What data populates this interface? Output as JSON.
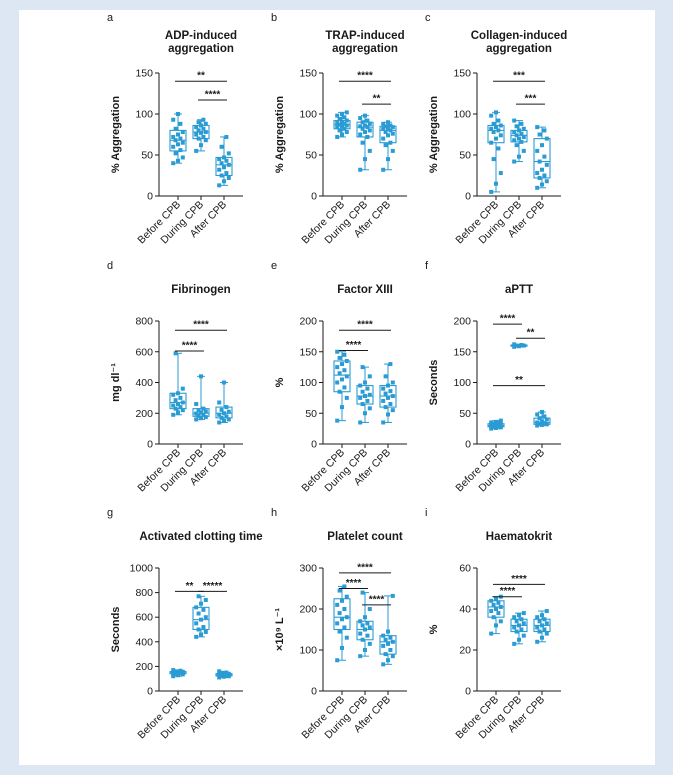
{
  "colors": {
    "series": "#2b9bd3",
    "axis": "#1a1a1a",
    "panel_bg": "#ffffff",
    "page_bg": "#dce7f3"
  },
  "chart_data": [
    {
      "id": "a",
      "type": "boxplot",
      "letter": "a",
      "title": [
        "ADP-induced",
        "aggregation"
      ],
      "ylabel": "% Aggregation",
      "ylim": [
        0,
        150
      ],
      "yticks": [
        0,
        50,
        100,
        150
      ],
      "categories": [
        "Before CPB",
        "During CPB",
        "After CPB"
      ],
      "boxes": [
        {
          "min": 40,
          "q1": 55,
          "median": 68,
          "q3": 80,
          "max": 100
        },
        {
          "min": 55,
          "q1": 70,
          "median": 78,
          "q3": 86,
          "max": 93
        },
        {
          "min": 13,
          "q1": 25,
          "median": 38,
          "q3": 47,
          "max": 72
        }
      ],
      "points": [
        [
          40,
          43,
          47,
          52,
          56,
          60,
          63,
          65,
          68,
          70,
          72,
          75,
          78,
          82,
          88,
          93,
          100
        ],
        [
          55,
          62,
          68,
          70,
          72,
          75,
          77,
          78,
          80,
          82,
          84,
          86,
          88,
          90,
          93
        ],
        [
          13,
          18,
          22,
          25,
          28,
          32,
          35,
          38,
          40,
          43,
          45,
          47,
          52,
          60,
          72
        ]
      ],
      "significance": [
        {
          "from": 0,
          "to": 2,
          "label": "**",
          "y": 140
        },
        {
          "from": 1,
          "to": 2,
          "label": "****",
          "y": 117
        }
      ]
    },
    {
      "id": "b",
      "type": "boxplot",
      "letter": "b",
      "title": [
        "TRAP-induced",
        "aggregation"
      ],
      "ylabel": "% Aggregation",
      "ylim": [
        0,
        150
      ],
      "yticks": [
        0,
        50,
        100,
        150
      ],
      "categories": [
        "Before CPB",
        "During CPB",
        "After CPB"
      ],
      "boxes": [
        {
          "min": 72,
          "q1": 82,
          "median": 87,
          "q3": 92,
          "max": 102
        },
        {
          "min": 32,
          "q1": 72,
          "median": 84,
          "q3": 90,
          "max": 98
        },
        {
          "min": 32,
          "q1": 65,
          "median": 80,
          "q3": 85,
          "max": 90
        }
      ],
      "points": [
        [
          72,
          75,
          78,
          80,
          82,
          84,
          85,
          86,
          87,
          88,
          89,
          90,
          92,
          94,
          96,
          98,
          100,
          102
        ],
        [
          32,
          45,
          55,
          65,
          72,
          75,
          78,
          80,
          82,
          84,
          85,
          86,
          88,
          90,
          92,
          95,
          98
        ],
        [
          32,
          45,
          55,
          62,
          65,
          70,
          74,
          76,
          78,
          80,
          82,
          83,
          84,
          85,
          86,
          88,
          90
        ]
      ],
      "significance": [
        {
          "from": 0,
          "to": 2,
          "label": "****",
          "y": 140
        },
        {
          "from": 1,
          "to": 2,
          "label": "**",
          "y": 112
        }
      ]
    },
    {
      "id": "c",
      "type": "boxplot",
      "letter": "c",
      "title": [
        "Collagen-induced",
        "aggregation"
      ],
      "ylabel": "% Aggregation",
      "ylim": [
        0,
        150
      ],
      "yticks": [
        0,
        50,
        100,
        150
      ],
      "categories": [
        "Before CPB",
        "During CPB",
        "After CPB"
      ],
      "boxes": [
        {
          "min": 5,
          "q1": 65,
          "median": 80,
          "q3": 86,
          "max": 102
        },
        {
          "min": 42,
          "q1": 66,
          "median": 74,
          "q3": 80,
          "max": 92
        },
        {
          "min": 10,
          "q1": 22,
          "median": 42,
          "q3": 70,
          "max": 84
        }
      ],
      "points": [
        [
          5,
          15,
          28,
          45,
          58,
          65,
          70,
          74,
          78,
          80,
          82,
          84,
          86,
          88,
          92,
          98,
          102
        ],
        [
          42,
          48,
          55,
          62,
          66,
          68,
          70,
          72,
          74,
          76,
          78,
          80,
          82,
          85,
          88,
          92
        ],
        [
          10,
          14,
          18,
          22,
          25,
          28,
          32,
          38,
          42,
          48,
          55,
          62,
          70,
          75,
          80,
          84
        ]
      ],
      "significance": [
        {
          "from": 0,
          "to": 2,
          "label": "***",
          "y": 140
        },
        {
          "from": 1,
          "to": 2,
          "label": "***",
          "y": 112
        }
      ]
    },
    {
      "id": "d",
      "type": "boxplot",
      "letter": "d",
      "title": [
        "Fibrinogen"
      ],
      "ylabel": "mg dl⁻¹",
      "ylim": [
        0,
        800
      ],
      "yticks": [
        0,
        200,
        400,
        600,
        800
      ],
      "categories": [
        "Before CPB",
        "During CPB",
        "After CPB"
      ],
      "boxes": [
        {
          "min": 190,
          "q1": 230,
          "median": 270,
          "q3": 330,
          "max": 590
        },
        {
          "min": 160,
          "q1": 180,
          "median": 200,
          "q3": 230,
          "max": 440
        },
        {
          "min": 140,
          "q1": 170,
          "median": 200,
          "q3": 240,
          "max": 400
        }
      ],
      "points": [
        [
          190,
          205,
          220,
          230,
          240,
          250,
          260,
          270,
          285,
          300,
          320,
          330,
          360,
          590
        ],
        [
          160,
          168,
          175,
          182,
          190,
          198,
          205,
          212,
          220,
          230,
          260,
          440
        ],
        [
          140,
          150,
          160,
          170,
          180,
          190,
          200,
          210,
          222,
          240,
          270,
          400
        ]
      ],
      "significance": [
        {
          "from": 0,
          "to": 2,
          "label": "****",
          "y": 740
        },
        {
          "from": 0,
          "to": 1,
          "label": "****",
          "y": 605
        }
      ]
    },
    {
      "id": "e",
      "type": "boxplot",
      "letter": "e",
      "title": [
        "Factor XIII"
      ],
      "ylabel": "%",
      "ylim": [
        0,
        200
      ],
      "yticks": [
        0,
        50,
        100,
        150,
        200
      ],
      "categories": [
        "Before CPB",
        "During CPB",
        "After CPB"
      ],
      "boxes": [
        {
          "min": 38,
          "q1": 85,
          "median": 112,
          "q3": 135,
          "max": 150
        },
        {
          "min": 35,
          "q1": 65,
          "median": 78,
          "q3": 95,
          "max": 125
        },
        {
          "min": 35,
          "q1": 60,
          "median": 78,
          "q3": 95,
          "max": 130
        }
      ],
      "points": [
        [
          38,
          60,
          75,
          85,
          92,
          100,
          105,
          110,
          115,
          120,
          125,
          130,
          135,
          140,
          145,
          150
        ],
        [
          35,
          50,
          58,
          65,
          70,
          75,
          78,
          80,
          85,
          90,
          95,
          100,
          110,
          125
        ],
        [
          35,
          48,
          55,
          60,
          65,
          70,
          75,
          78,
          82,
          86,
          90,
          95,
          100,
          110,
          130
        ]
      ],
      "significance": [
        {
          "from": 0,
          "to": 2,
          "label": "****",
          "y": 185
        },
        {
          "from": 0,
          "to": 1,
          "label": "****",
          "y": 152
        }
      ]
    },
    {
      "id": "f",
      "type": "boxplot",
      "letter": "f",
      "title": [
        "aPTT"
      ],
      "ylabel": "Seconds",
      "ylim": [
        0,
        200
      ],
      "yticks": [
        0,
        50,
        100,
        150,
        200
      ],
      "categories": [
        "Before CPB",
        "During CPB",
        "After CPB"
      ],
      "boxes": [
        {
          "min": 25,
          "q1": 28,
          "median": 30,
          "q3": 33,
          "max": 38
        },
        {
          "min": 158,
          "q1": 159,
          "median": 160,
          "q3": 161,
          "max": 162
        },
        {
          "min": 30,
          "q1": 32,
          "median": 35,
          "q3": 42,
          "max": 52
        }
      ],
      "points": [
        [
          25,
          26,
          27,
          28,
          29,
          30,
          31,
          32,
          33,
          34,
          35,
          36,
          38
        ],
        [
          158,
          159,
          160,
          160,
          161,
          162
        ],
        [
          30,
          31,
          32,
          33,
          34,
          35,
          37,
          40,
          42,
          45,
          48,
          52
        ]
      ],
      "significance": [
        {
          "from": 0,
          "to": 1,
          "label": "****",
          "y": 195
        },
        {
          "from": 1,
          "to": 2,
          "label": "**",
          "y": 172
        },
        {
          "from": 0,
          "to": 2,
          "label": "**",
          "y": 95
        }
      ]
    },
    {
      "id": "g",
      "type": "boxplot",
      "letter": "g",
      "title": [
        "Activated clotting time"
      ],
      "ylabel": "Seconds",
      "ylim": [
        0,
        1000
      ],
      "yticks": [
        0,
        200,
        400,
        600,
        800,
        1000
      ],
      "categories": [
        "Before CPB",
        "During CPB",
        "After CPB"
      ],
      "boxes": [
        {
          "min": 120,
          "q1": 140,
          "median": 148,
          "q3": 158,
          "max": 170
        },
        {
          "min": 440,
          "q1": 500,
          "median": 580,
          "q3": 680,
          "max": 770
        },
        {
          "min": 110,
          "q1": 122,
          "median": 132,
          "q3": 142,
          "max": 160
        }
      ],
      "points": [
        [
          120,
          128,
          135,
          140,
          144,
          148,
          152,
          156,
          160,
          165,
          170
        ],
        [
          440,
          460,
          480,
          500,
          520,
          550,
          580,
          600,
          630,
          660,
          680,
          710,
          740,
          770
        ],
        [
          110,
          116,
          120,
          124,
          128,
          132,
          136,
          140,
          145,
          150,
          160
        ]
      ],
      "significance": [
        {
          "from": 0,
          "to": 1,
          "label": "**",
          "y": 810
        },
        {
          "from": 1,
          "to": 2,
          "label": "*****",
          "y": 810
        }
      ]
    },
    {
      "id": "h",
      "type": "boxplot",
      "letter": "h",
      "title": [
        "Platelet count"
      ],
      "ylabel": "×10⁹ L⁻¹",
      "ylim": [
        0,
        300
      ],
      "yticks": [
        0,
        100,
        200,
        300
      ],
      "categories": [
        "Before CPB",
        "During CPB",
        "After CPB"
      ],
      "boxes": [
        {
          "min": 75,
          "q1": 150,
          "median": 180,
          "q3": 225,
          "max": 255
        },
        {
          "min": 85,
          "q1": 125,
          "median": 150,
          "q3": 170,
          "max": 240
        },
        {
          "min": 65,
          "q1": 90,
          "median": 120,
          "q3": 135,
          "max": 232
        }
      ],
      "points": [
        [
          75,
          105,
          130,
          145,
          155,
          165,
          175,
          180,
          190,
          200,
          210,
          220,
          230,
          245,
          255
        ],
        [
          85,
          100,
          115,
          125,
          135,
          140,
          150,
          155,
          160,
          165,
          170,
          180,
          200,
          240
        ],
        [
          65,
          75,
          85,
          90,
          100,
          110,
          115,
          120,
          125,
          130,
          135,
          145,
          232
        ]
      ],
      "significance": [
        {
          "from": 0,
          "to": 2,
          "label": "****",
          "y": 288
        },
        {
          "from": 0,
          "to": 1,
          "label": "****",
          "y": 250
        },
        {
          "from": 1,
          "to": 2,
          "label": "****",
          "y": 210
        }
      ]
    },
    {
      "id": "i",
      "type": "boxplot",
      "letter": "i",
      "title": [
        "Haematokrit"
      ],
      "ylabel": "%",
      "ylim": [
        0,
        60
      ],
      "yticks": [
        0,
        20,
        40,
        60
      ],
      "categories": [
        "Before CPB",
        "During CPB",
        "After CPB"
      ],
      "boxes": [
        {
          "min": 28,
          "q1": 36,
          "median": 41,
          "q3": 44,
          "max": 46
        },
        {
          "min": 23,
          "q1": 29,
          "median": 32,
          "q3": 35,
          "max": 38
        },
        {
          "min": 24,
          "q1": 29,
          "median": 32,
          "q3": 35,
          "max": 39
        }
      ],
      "points": [
        [
          28,
          32,
          34,
          36,
          38,
          39,
          40,
          41,
          42,
          43,
          44,
          45,
          46
        ],
        [
          23,
          25,
          27,
          29,
          30,
          31,
          32,
          33,
          34,
          35,
          36,
          37,
          38
        ],
        [
          24,
          26,
          28,
          29,
          30,
          31,
          32,
          33,
          34,
          35,
          36,
          37,
          39
        ]
      ],
      "significance": [
        {
          "from": 0,
          "to": 1,
          "label": "****",
          "y": 46
        },
        {
          "from": 0,
          "to": 2,
          "label": "****",
          "y": 52
        }
      ]
    }
  ]
}
